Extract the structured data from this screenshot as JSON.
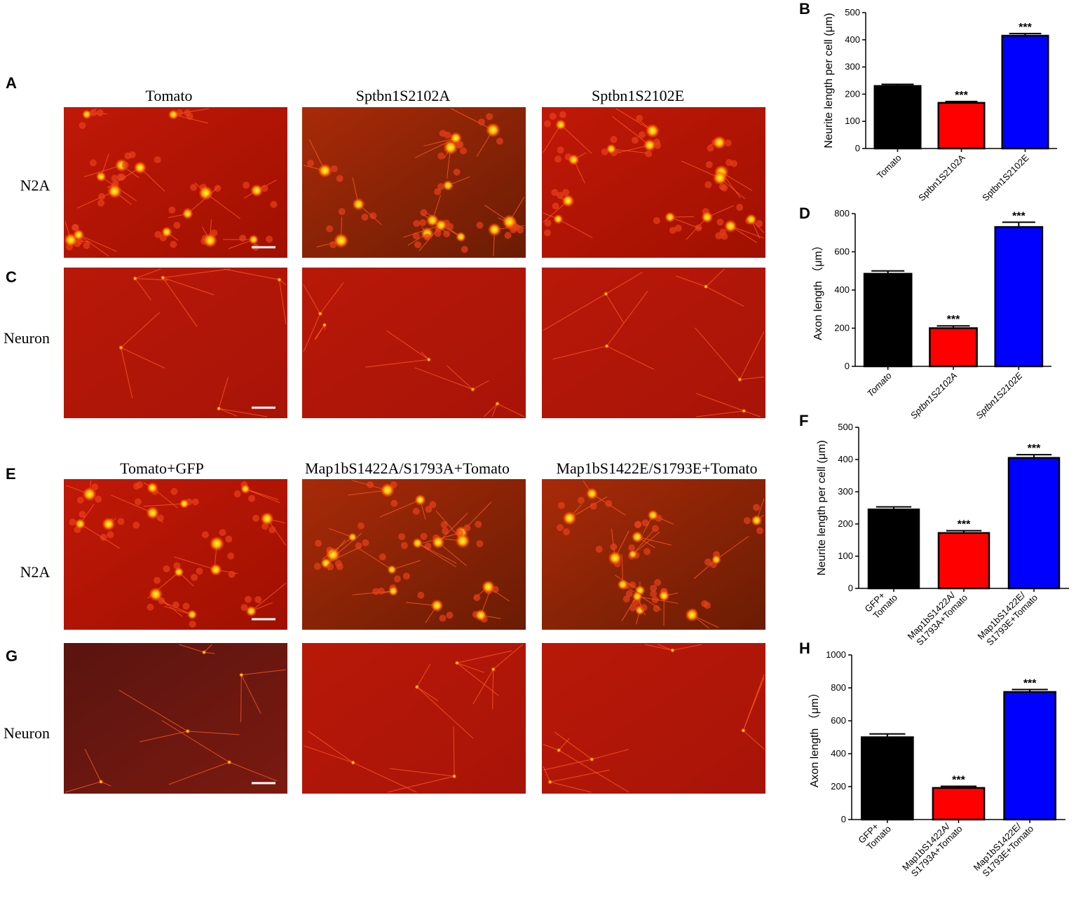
{
  "figure": {
    "panel_labels": [
      "A",
      "C",
      "E",
      "G"
    ],
    "column_titles_top": [
      "Tomato",
      "Sptbn1S2102A",
      "Sptbn1S2102E"
    ],
    "column_titles_bottom": [
      "Tomato+GFP",
      "Map1bS1422A/S1793A+Tomato",
      "Map1bS1422E/S1793E+Tomato"
    ],
    "row_labels": [
      "N2A",
      "Neuron",
      "N2A",
      "Neuron"
    ]
  },
  "chart_data": [
    {
      "type": "bar",
      "panel": "B",
      "ylabel": "Neurite length per cell (μm)",
      "categories": [
        [
          "Tomato"
        ],
        [
          "Sptbn1S2102A"
        ],
        [
          "Sptbn1S2102E"
        ]
      ],
      "category_style": "normal",
      "values": [
        230,
        168,
        415
      ],
      "errors": [
        6,
        5,
        8
      ],
      "annotations": [
        null,
        "***",
        "***"
      ],
      "colors": [
        "#000000",
        "#ff0000",
        "#0000ff"
      ],
      "ylim": [
        0,
        500
      ],
      "yticks": [
        0,
        100,
        200,
        300,
        400,
        500
      ]
    },
    {
      "type": "bar",
      "panel": "D",
      "ylabel": "Axon length （μm）",
      "categories": [
        [
          "Tomato"
        ],
        [
          "Sptbn1S2102A"
        ],
        [
          "Sptbn1S2102E"
        ]
      ],
      "category_style": "italic",
      "values": [
        485,
        200,
        730
      ],
      "errors": [
        15,
        12,
        25
      ],
      "annotations": [
        null,
        "***",
        "***"
      ],
      "colors": [
        "#000000",
        "#ff0000",
        "#0000ff"
      ],
      "ylim": [
        0,
        800
      ],
      "yticks": [
        0,
        200,
        400,
        600,
        800
      ]
    },
    {
      "type": "bar",
      "panel": "F",
      "ylabel": "Neurite length per cell (μm)",
      "categories": [
        [
          "GFP+",
          "Tomato"
        ],
        [
          "Map1bS1422A/",
          "S1793A+Tomato"
        ],
        [
          "Map1bS1422E/",
          "S1793E+Tomato"
        ]
      ],
      "category_style": "normal",
      "values": [
        245,
        172,
        405
      ],
      "errors": [
        8,
        7,
        10
      ],
      "annotations": [
        null,
        "***",
        "***"
      ],
      "colors": [
        "#000000",
        "#ff0000",
        "#0000ff"
      ],
      "ylim": [
        0,
        500
      ],
      "yticks": [
        0,
        100,
        200,
        300,
        400,
        500
      ]
    },
    {
      "type": "bar",
      "panel": "H",
      "ylabel": "Axon length （μm）",
      "categories": [
        [
          "GFP+",
          "Tomato"
        ],
        [
          "Map1bS1422A/",
          "S1793A+Tomato"
        ],
        [
          "Map1bS1422E/",
          "S1793E+Tomato"
        ]
      ],
      "category_style": "normal",
      "values": [
        500,
        192,
        775
      ],
      "errors": [
        20,
        10,
        15
      ],
      "annotations": [
        null,
        "***",
        "***"
      ],
      "colors": [
        "#000000",
        "#ff0000",
        "#0000ff"
      ],
      "ylim": [
        0,
        1000
      ],
      "yticks": [
        0,
        200,
        400,
        600,
        800,
        1000
      ]
    }
  ]
}
